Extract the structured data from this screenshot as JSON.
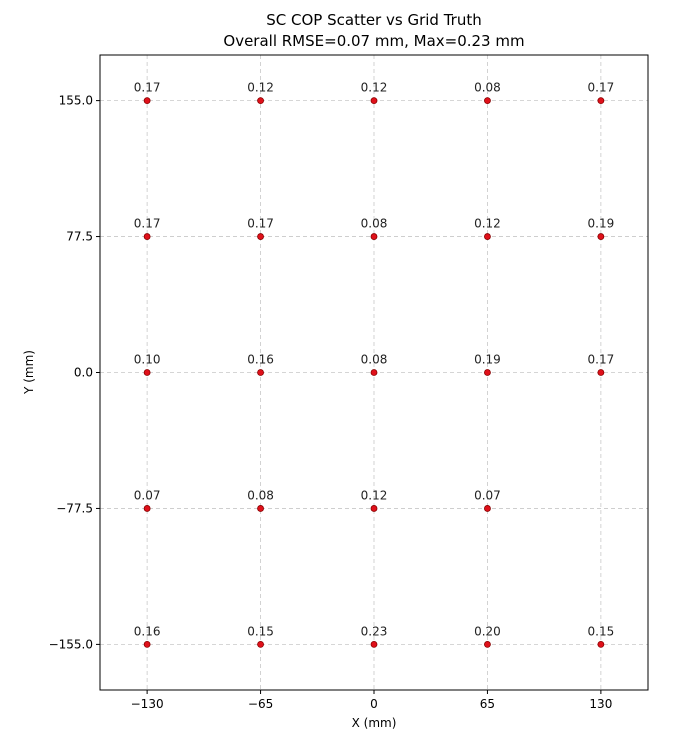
{
  "chart_data": {
    "type": "scatter",
    "title": "SC COP Scatter vs Grid Truth",
    "subtitle": "Overall RMSE=0.07 mm, Max=0.23 mm",
    "xlabel": "X (mm)",
    "ylabel": "Y (mm)",
    "xlim": [
      -157,
      157
    ],
    "ylim": [
      -181,
      181
    ],
    "x_ticks": [
      -130,
      -65,
      0,
      65,
      130
    ],
    "x_tick_labels": [
      "−130",
      "−65",
      "0",
      "65",
      "130"
    ],
    "y_ticks": [
      155.0,
      77.5,
      0.0,
      -77.5,
      -155.0
    ],
    "y_tick_labels": [
      "155.0",
      "77.5",
      "0.0",
      "−77.5",
      "−155.0"
    ],
    "grid": true,
    "point_color": "#e0101a",
    "points": [
      {
        "x": -130,
        "y": 155.0,
        "label": "0.17"
      },
      {
        "x": -65,
        "y": 155.0,
        "label": "0.12"
      },
      {
        "x": 0,
        "y": 155.0,
        "label": "0.12"
      },
      {
        "x": 65,
        "y": 155.0,
        "label": "0.08"
      },
      {
        "x": 130,
        "y": 155.0,
        "label": "0.17"
      },
      {
        "x": -130,
        "y": 77.5,
        "label": "0.17"
      },
      {
        "x": -65,
        "y": 77.5,
        "label": "0.17"
      },
      {
        "x": 0,
        "y": 77.5,
        "label": "0.08"
      },
      {
        "x": 65,
        "y": 77.5,
        "label": "0.12"
      },
      {
        "x": 130,
        "y": 77.5,
        "label": "0.19"
      },
      {
        "x": -130,
        "y": 0.0,
        "label": "0.10"
      },
      {
        "x": -65,
        "y": 0.0,
        "label": "0.16"
      },
      {
        "x": 0,
        "y": 0.0,
        "label": "0.08"
      },
      {
        "x": 65,
        "y": 0.0,
        "label": "0.19"
      },
      {
        "x": 130,
        "y": 0.0,
        "label": "0.17"
      },
      {
        "x": -130,
        "y": -77.5,
        "label": "0.07"
      },
      {
        "x": -65,
        "y": -77.5,
        "label": "0.08"
      },
      {
        "x": 0,
        "y": -77.5,
        "label": "0.12"
      },
      {
        "x": 65,
        "y": -77.5,
        "label": "0.07"
      },
      {
        "x": -130,
        "y": -155.0,
        "label": "0.16"
      },
      {
        "x": -65,
        "y": -155.0,
        "label": "0.15"
      },
      {
        "x": 0,
        "y": -155.0,
        "label": "0.23"
      },
      {
        "x": 65,
        "y": -155.0,
        "label": "0.20"
      },
      {
        "x": 130,
        "y": -155.0,
        "label": "0.15"
      }
    ]
  }
}
